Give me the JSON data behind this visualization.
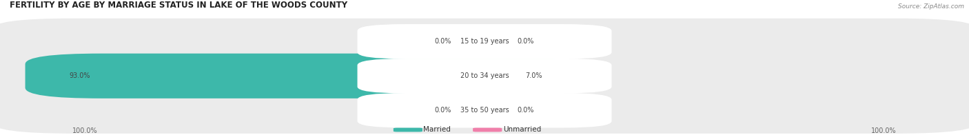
{
  "title": "FERTILITY BY AGE BY MARRIAGE STATUS IN LAKE OF THE WOODS COUNTY",
  "source": "Source: ZipAtlas.com",
  "rows": [
    {
      "label": "15 to 19 years",
      "married": 0.0,
      "unmarried": 0.0
    },
    {
      "label": "20 to 34 years",
      "married": 93.0,
      "unmarried": 7.0
    },
    {
      "label": "35 to 50 years",
      "married": 0.0,
      "unmarried": 0.0
    }
  ],
  "married_color": "#3db8aa",
  "unmarried_color": "#f07faa",
  "unmarried_color_light": "#f5afc8",
  "married_color_light": "#88d8cf",
  "bar_bg_color": "#ebebeb",
  "title_color": "#222222",
  "source_color": "#888888",
  "label_color": "#444444",
  "value_color": "#444444",
  "bottom_label_color": "#666666",
  "legend_married": "Married",
  "legend_unmarried": "Unmarried",
  "left_axis_label": "100.0%",
  "right_axis_label": "100.0%",
  "bar_max": 100.0,
  "fig_width": 14.06,
  "fig_height": 1.96,
  "dpi": 100
}
